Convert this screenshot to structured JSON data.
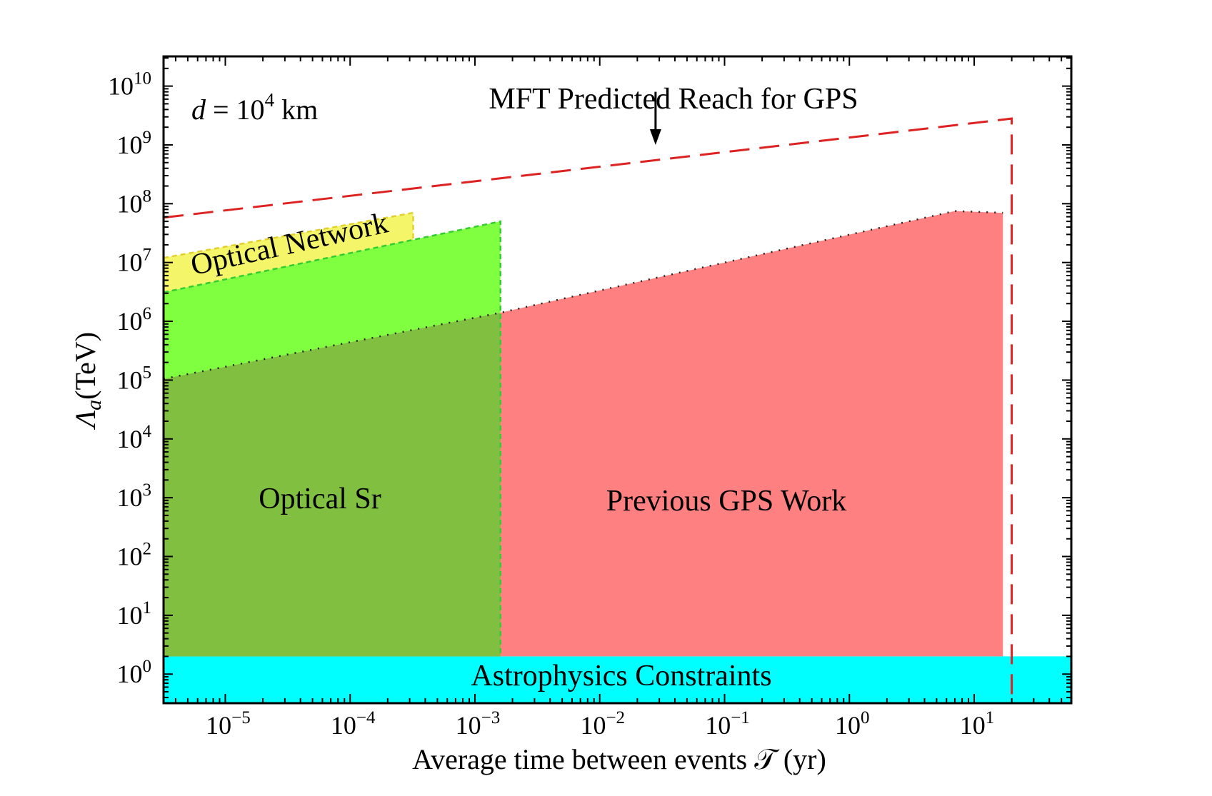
{
  "chart_data": {
    "type": "area",
    "xlabel": "Average time between events 𝒯 (yr)",
    "ylabel_symbol": "Λ",
    "ylabel_subscript": "a",
    "ylabel_unit": "(TeV)",
    "xscale": "log",
    "yscale": "log",
    "xlim": [
      3.2e-06,
      60
    ],
    "ylim": [
      0.32,
      32000000000.0
    ],
    "x_ticks": [
      {
        "value": 1e-05,
        "base": "10",
        "exp": "−5"
      },
      {
        "value": 0.0001,
        "base": "10",
        "exp": "−4"
      },
      {
        "value": 0.001,
        "base": "10",
        "exp": "−3"
      },
      {
        "value": 0.01,
        "base": "10",
        "exp": "−2"
      },
      {
        "value": 0.1,
        "base": "10",
        "exp": "−1"
      },
      {
        "value": 1,
        "base": "10",
        "exp": "0"
      },
      {
        "value": 10,
        "base": "10",
        "exp": "1"
      }
    ],
    "y_ticks": [
      {
        "value": 1,
        "base": "10",
        "exp": "0"
      },
      {
        "value": 10,
        "base": "10",
        "exp": "1"
      },
      {
        "value": 100,
        "base": "10",
        "exp": "2"
      },
      {
        "value": 1000,
        "base": "10",
        "exp": "3"
      },
      {
        "value": 10000,
        "base": "10",
        "exp": "4"
      },
      {
        "value": 100000,
        "base": "10",
        "exp": "5"
      },
      {
        "value": 1000000,
        "base": "10",
        "exp": "6"
      },
      {
        "value": 10000000,
        "base": "10",
        "exp": "7"
      },
      {
        "value": 100000000,
        "base": "10",
        "exp": "8"
      },
      {
        "value": 1000000000,
        "base": "10",
        "exp": "9"
      },
      {
        "value": 10000000000,
        "base": "10",
        "exp": "10"
      }
    ],
    "grid": false,
    "annotation_d": {
      "prefix": "d",
      "middle": " = 10",
      "exp": "4",
      "suffix": " km"
    },
    "series": [
      {
        "name": "Astrophysics Constraints",
        "color": "#00ffff",
        "kind": "band",
        "x": [
          3.2e-06,
          60
        ],
        "y_top": 2.0
      },
      {
        "name": "Optical Network",
        "color": "#f5f56a",
        "kind": "band",
        "x": [
          3.2e-06,
          0.00032
        ],
        "y_bottom": [
          3100000.0,
          25000000.0
        ],
        "y_top": [
          12000000.0,
          70000000.0
        ]
      },
      {
        "name": "Optical Sr",
        "color": "#80ff40",
        "kind": "area",
        "x": [
          3.2e-06,
          0.0016
        ],
        "y_top": [
          3100000.0,
          50000000.0
        ]
      },
      {
        "name": "Previous GPS Work",
        "color": "#ff8080",
        "kind": "area",
        "x": [
          3.2e-06,
          0.0016,
          7.0,
          17.0
        ],
        "y_top": [
          105000.0,
          1400000.0,
          75000000.0,
          70000000.0
        ]
      },
      {
        "name": "MFT Predicted Reach for GPS",
        "color": "#dd2222",
        "kind": "dashed-line",
        "x": [
          3.2e-06,
          20,
          20
        ],
        "y": [
          58000000.0,
          2800000000.0,
          0.32
        ]
      }
    ],
    "arrow": {
      "x": 0.028,
      "y_from": 8000000000.0,
      "y_to": 1000000000.0
    }
  }
}
